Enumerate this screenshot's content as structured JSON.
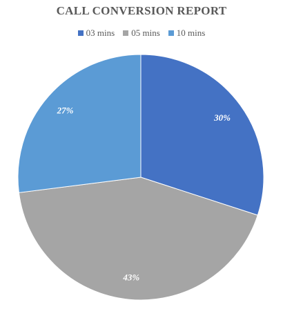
{
  "chart_data": {
    "type": "pie",
    "title": "CALL CONVERSION REPORT",
    "legend_position": "top",
    "categories": [
      "03 mins",
      "05 mins",
      "10 mins"
    ],
    "values": [
      30,
      43,
      27
    ],
    "data_labels": [
      "30%",
      "43%",
      "27%"
    ],
    "colors": [
      "#4472C4",
      "#A5A5A5",
      "#5B9BD5"
    ]
  }
}
